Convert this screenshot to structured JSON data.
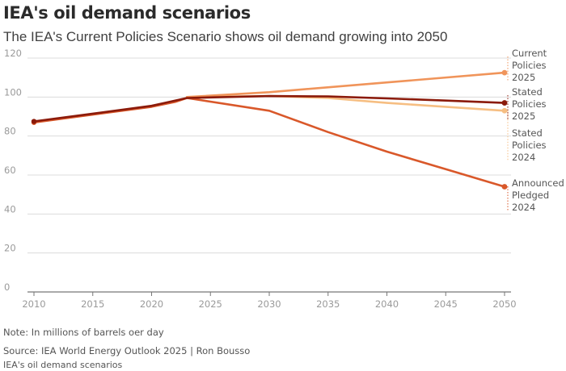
{
  "header": {
    "title": "IEA's oil demand scenarios",
    "subtitle": "The IEA's Current Policies Scenario shows oil demand growing into 2050"
  },
  "footer": {
    "note": "Note: In millions of barrels oer day",
    "source": "Source: IEA World Energy Outlook 2025 | Ron Bousso",
    "caption": "IEA's oil demand scenarios"
  },
  "chart_data": {
    "type": "line",
    "title": "IEA's oil demand scenarios",
    "xlabel": "",
    "ylabel": "",
    "xlim": [
      2010,
      2050
    ],
    "ylim": [
      0,
      120
    ],
    "xticks": [
      2010,
      2015,
      2020,
      2025,
      2030,
      2035,
      2040,
      2045,
      2050
    ],
    "yticks": [
      0,
      20,
      40,
      60,
      80,
      100,
      120
    ],
    "grid": true,
    "series": [
      {
        "name": "Current Policies 2025",
        "label_lines": [
          "Current",
          "Policies",
          "2025"
        ],
        "color": "#f0945a",
        "x": [
          2023,
          2030,
          2040,
          2050
        ],
        "values": [
          100,
          102.5,
          107.5,
          112.5
        ]
      },
      {
        "name": "Stated Policies 2025",
        "label_lines": [
          "Stated",
          "Policies",
          "2025"
        ],
        "color": "#8b1a0a",
        "x": [
          2010,
          2015,
          2020,
          2023,
          2030,
          2035,
          2040,
          2045,
          2050
        ],
        "values": [
          87.5,
          91.5,
          95.5,
          99.5,
          100.5,
          100.3,
          99.3,
          98.2,
          97
        ]
      },
      {
        "name": "Stated Policies 2024",
        "label_lines": [
          "Stated",
          "Policies",
          "2024"
        ],
        "color": "#f6be82",
        "x": [
          2023,
          2030,
          2035,
          2040,
          2050
        ],
        "values": [
          100,
          100.5,
          99.5,
          97,
          93
        ]
      },
      {
        "name": "Announced Pledged 2024",
        "label_lines": [
          "Announced",
          "Pledged",
          "2024"
        ],
        "color": "#d9582a",
        "x": [
          2010,
          2015,
          2020,
          2022,
          2023,
          2030,
          2035,
          2040,
          2045,
          2050
        ],
        "values": [
          87,
          91,
          95,
          97.5,
          99.5,
          93,
          82,
          72,
          63,
          54
        ]
      }
    ]
  }
}
